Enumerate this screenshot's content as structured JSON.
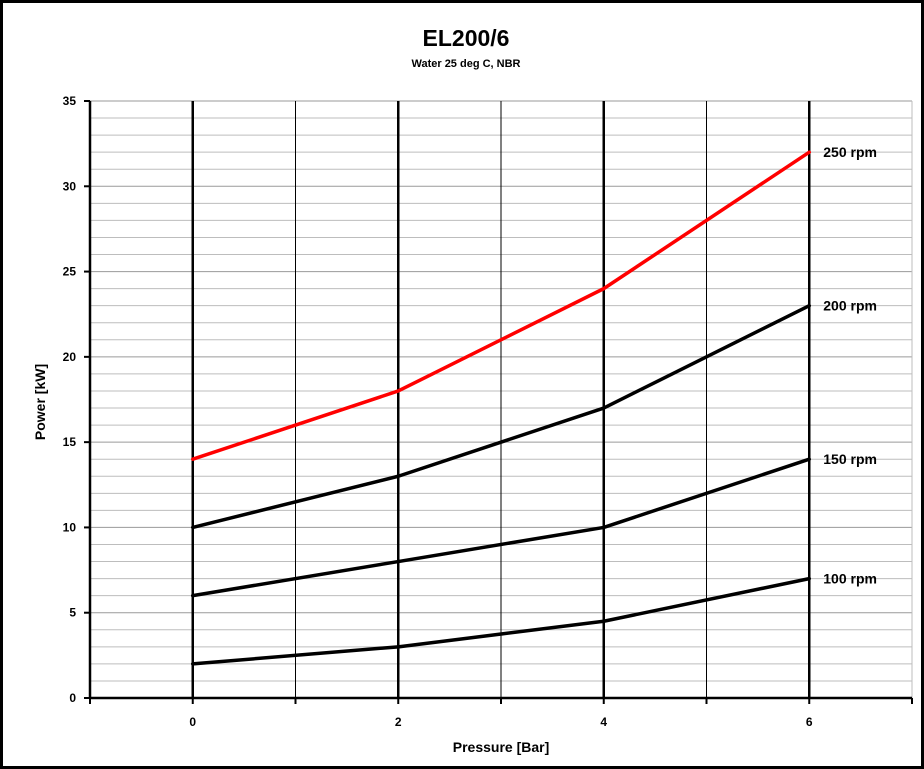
{
  "chart_data": {
    "type": "line",
    "title": "EL200/6",
    "subtitle": "Water 25 deg C, NBR",
    "xlabel": "Pressure [Bar]",
    "ylabel": "Power [kW]",
    "xlim": [
      -1,
      7
    ],
    "ylim": [
      0,
      35
    ],
    "x_ticks": [
      "0",
      "2",
      "4",
      "6"
    ],
    "y_ticks": [
      "0",
      "5",
      "10",
      "15",
      "20",
      "25",
      "30",
      "35"
    ],
    "grid": true,
    "x": [
      0,
      2,
      4,
      6
    ],
    "series": [
      {
        "name": "250 rpm",
        "values": [
          14,
          18,
          24,
          32
        ],
        "color": "#ff0000"
      },
      {
        "name": "200 rpm",
        "values": [
          10,
          13,
          17,
          23
        ],
        "color": "#000000"
      },
      {
        "name": "150 rpm",
        "values": [
          6,
          8,
          10,
          14
        ],
        "color": "#000000"
      },
      {
        "name": "100 rpm",
        "values": [
          2,
          3,
          4.5,
          7
        ],
        "color": "#000000"
      }
    ]
  }
}
